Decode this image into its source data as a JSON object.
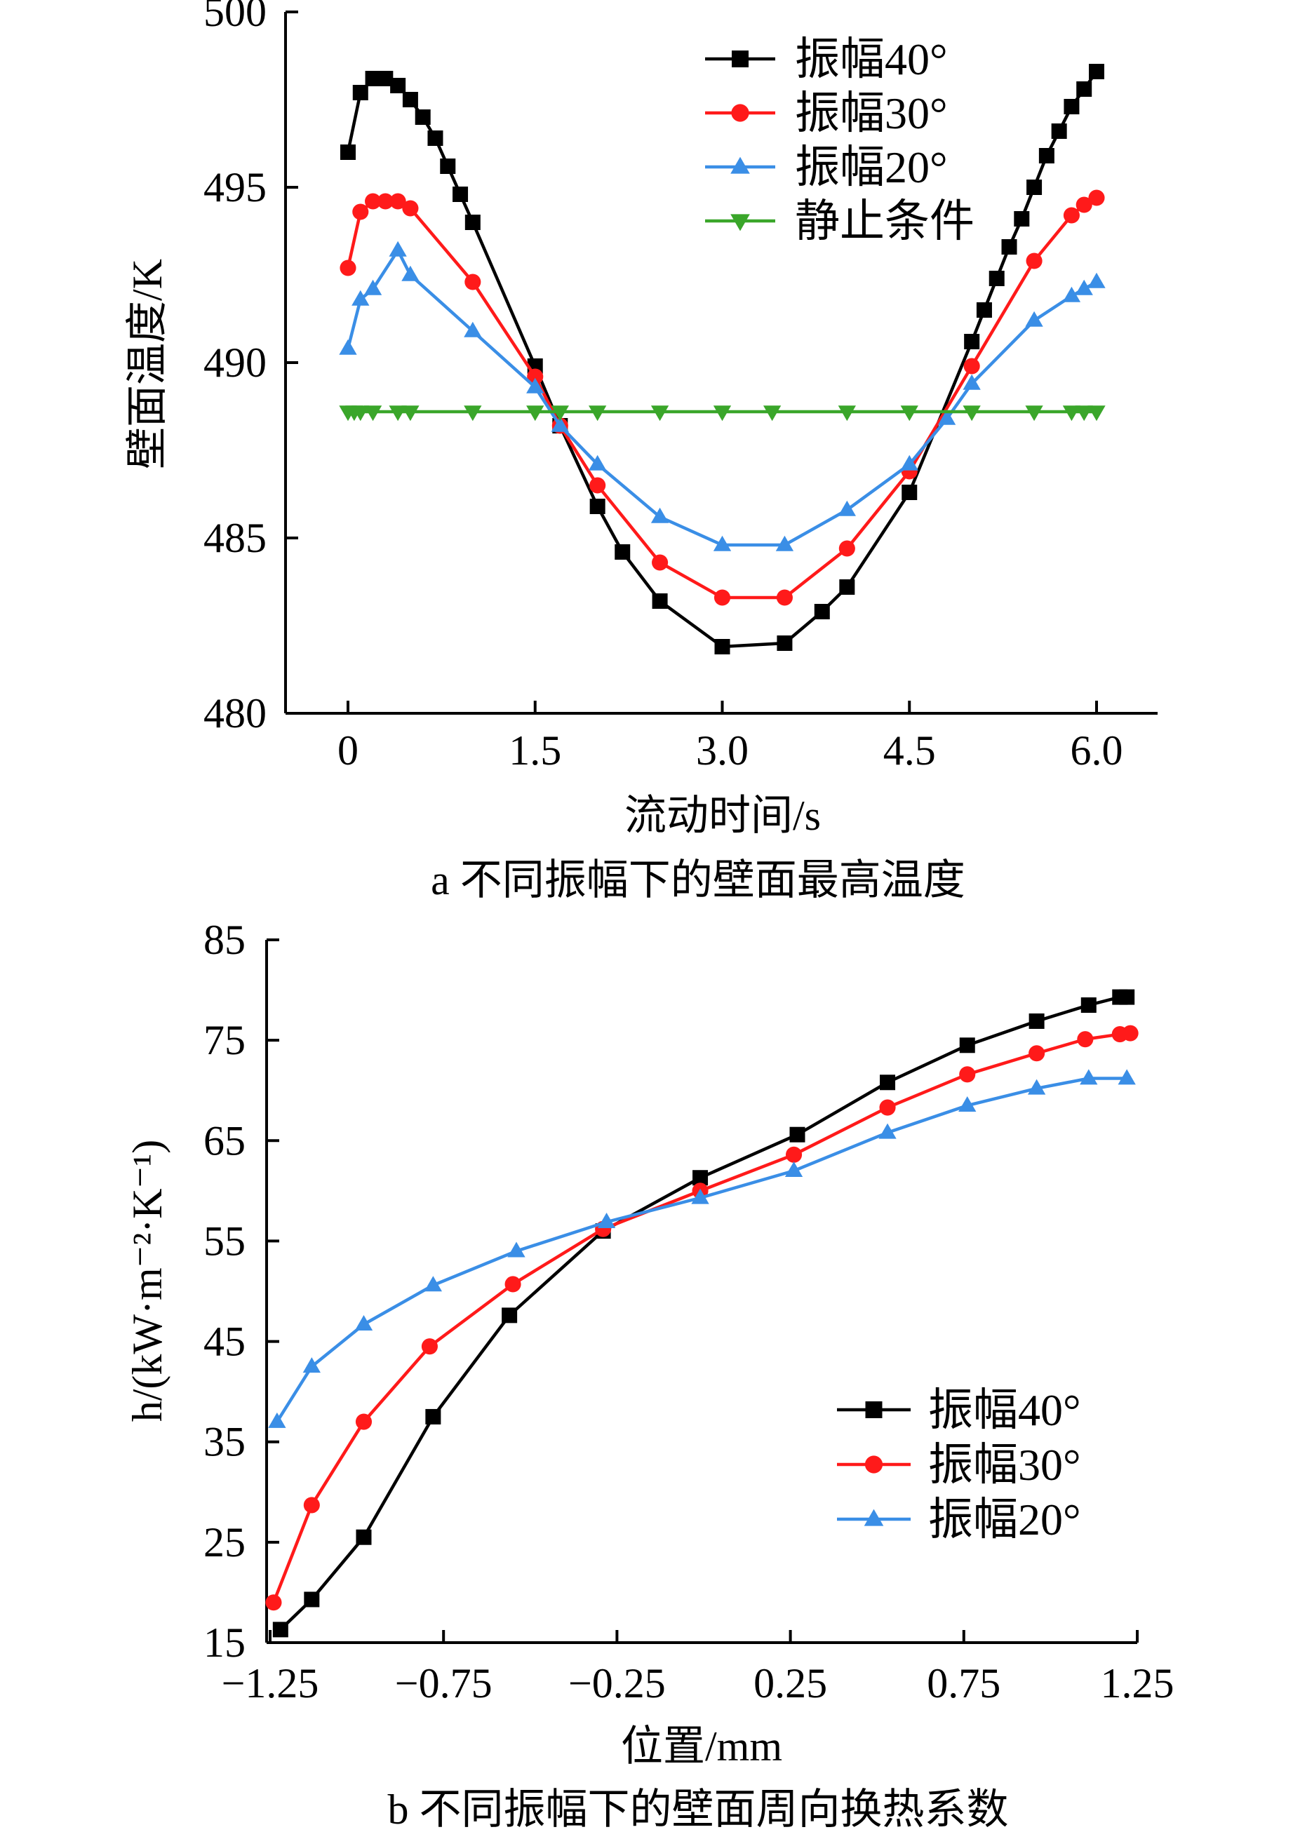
{
  "chart_data": [
    {
      "type": "line",
      "title": "a 不同振幅下的壁面最高温度",
      "xlabel": "流动时间/s",
      "ylabel": "壁面温度/K",
      "xlim": [
        -0.5,
        6.5
      ],
      "ylim": [
        480,
        500
      ],
      "xticks": [
        0,
        1.5,
        3.0,
        4.5,
        6.0
      ],
      "xtick_labels": [
        "0",
        "1.5",
        "3.0",
        "4.5",
        "6.0"
      ],
      "yticks": [
        480,
        485,
        490,
        495,
        500
      ],
      "ytick_labels": [
        "480",
        "485",
        "490",
        "495",
        "500"
      ],
      "grid": false,
      "legend_position": "top-right",
      "series": [
        {
          "name": "振幅40°",
          "color": "#000000",
          "marker": "square",
          "x": [
            0,
            0.1,
            0.2,
            0.3,
            0.4,
            0.5,
            0.6,
            0.7,
            0.8,
            0.9,
            1.0,
            1.5,
            1.7,
            2.0,
            2.2,
            2.5,
            3.0,
            3.5,
            3.8,
            4.0,
            4.5,
            5.0,
            5.1,
            5.2,
            5.3,
            5.4,
            5.5,
            5.6,
            5.7,
            5.8,
            5.9,
            6.0
          ],
          "y": [
            496.0,
            497.7,
            498.1,
            498.1,
            497.9,
            497.5,
            497.0,
            496.4,
            495.6,
            494.8,
            494.0,
            489.9,
            488.2,
            485.9,
            484.6,
            483.2,
            481.9,
            482.0,
            482.9,
            483.6,
            486.3,
            490.6,
            491.5,
            492.4,
            493.3,
            494.1,
            495.0,
            495.9,
            496.6,
            497.3,
            497.8,
            498.3
          ]
        },
        {
          "name": "振幅30°",
          "color": "#ff1a1a",
          "marker": "circle",
          "x": [
            0,
            0.1,
            0.2,
            0.3,
            0.4,
            0.5,
            1.0,
            1.5,
            1.7,
            2.0,
            2.5,
            3.0,
            3.5,
            4.0,
            4.5,
            5.0,
            5.5,
            5.8,
            5.9,
            6.0
          ],
          "y": [
            492.7,
            494.3,
            494.6,
            494.6,
            494.6,
            494.4,
            492.3,
            489.6,
            488.2,
            486.5,
            484.3,
            483.3,
            483.3,
            484.7,
            486.9,
            489.9,
            492.9,
            494.2,
            494.5,
            494.7
          ]
        },
        {
          "name": "振幅20°",
          "color": "#3a8ee6",
          "marker": "triangle-up",
          "x": [
            0,
            0.1,
            0.2,
            0.4,
            0.5,
            1.0,
            1.5,
            1.7,
            2.0,
            2.5,
            3.0,
            3.5,
            4.0,
            4.5,
            4.8,
            5.0,
            5.5,
            5.8,
            5.9,
            6.0
          ],
          "y": [
            490.4,
            491.8,
            492.1,
            493.2,
            492.5,
            490.9,
            489.3,
            488.2,
            487.1,
            485.6,
            484.8,
            484.8,
            485.8,
            487.1,
            488.4,
            489.4,
            491.2,
            491.9,
            492.1,
            492.3
          ]
        },
        {
          "name": "静止条件",
          "color": "#3aa62a",
          "marker": "triangle-down",
          "x": [
            0,
            0.05,
            0.1,
            0.2,
            0.4,
            0.5,
            1.0,
            1.5,
            1.7,
            2.0,
            2.5,
            3.0,
            3.4,
            4.0,
            4.5,
            5.0,
            5.5,
            5.8,
            5.9,
            6.0
          ],
          "y": [
            488.6,
            488.6,
            488.6,
            488.6,
            488.6,
            488.6,
            488.6,
            488.6,
            488.6,
            488.6,
            488.6,
            488.6,
            488.6,
            488.6,
            488.6,
            488.6,
            488.6,
            488.6,
            488.6,
            488.6
          ]
        }
      ]
    },
    {
      "type": "line",
      "title": "b 不同振幅下的壁面周向换热系数",
      "xlabel": "位置/mm",
      "ylabel": "h/(kW·m⁻²·K⁻¹)",
      "xlim": [
        -1.25,
        1.25
      ],
      "ylim": [
        15,
        85
      ],
      "xticks": [
        -1.25,
        -0.75,
        -0.25,
        0.25,
        0.75,
        1.25
      ],
      "xtick_labels": [
        "−1.25",
        "−0.75",
        "−0.25",
        "0.25",
        "0.75",
        "1.25"
      ],
      "yticks": [
        15,
        25,
        35,
        45,
        55,
        65,
        75,
        85
      ],
      "ytick_labels": [
        "15",
        "25",
        "35",
        "45",
        "55",
        "65",
        "75",
        "85"
      ],
      "grid": false,
      "legend_position": "center-right",
      "series": [
        {
          "name": "振幅40°",
          "color": "#000000",
          "marker": "square",
          "x": [
            -1.22,
            -1.13,
            -0.98,
            -0.78,
            -0.56,
            -0.29,
            -0.01,
            0.27,
            0.53,
            0.76,
            0.96,
            1.11,
            1.2,
            1.22
          ],
          "y": [
            16.3,
            19.3,
            25.5,
            37.5,
            47.6,
            56.0,
            61.3,
            65.6,
            70.8,
            74.5,
            76.9,
            78.5,
            79.3,
            79.3
          ]
        },
        {
          "name": "振幅30°",
          "color": "#ff1a1a",
          "marker": "circle",
          "x": [
            -1.24,
            -1.13,
            -0.98,
            -0.79,
            -0.55,
            -0.29,
            -0.01,
            0.26,
            0.53,
            0.76,
            0.96,
            1.1,
            1.2,
            1.23
          ],
          "y": [
            19.0,
            28.7,
            37.0,
            44.5,
            50.7,
            56.2,
            60.0,
            63.6,
            68.3,
            71.6,
            73.7,
            75.1,
            75.6,
            75.7
          ]
        },
        {
          "name": "振幅20°",
          "color": "#3a8ee6",
          "marker": "triangle-up",
          "x": [
            -1.23,
            -1.13,
            -0.98,
            -0.78,
            -0.54,
            -0.28,
            -0.01,
            0.26,
            0.53,
            0.76,
            0.96,
            1.11,
            1.22
          ],
          "y": [
            37.0,
            42.5,
            46.7,
            50.6,
            54.0,
            56.9,
            59.3,
            62.0,
            65.8,
            68.5,
            70.2,
            71.2,
            71.2
          ]
        }
      ]
    }
  ]
}
